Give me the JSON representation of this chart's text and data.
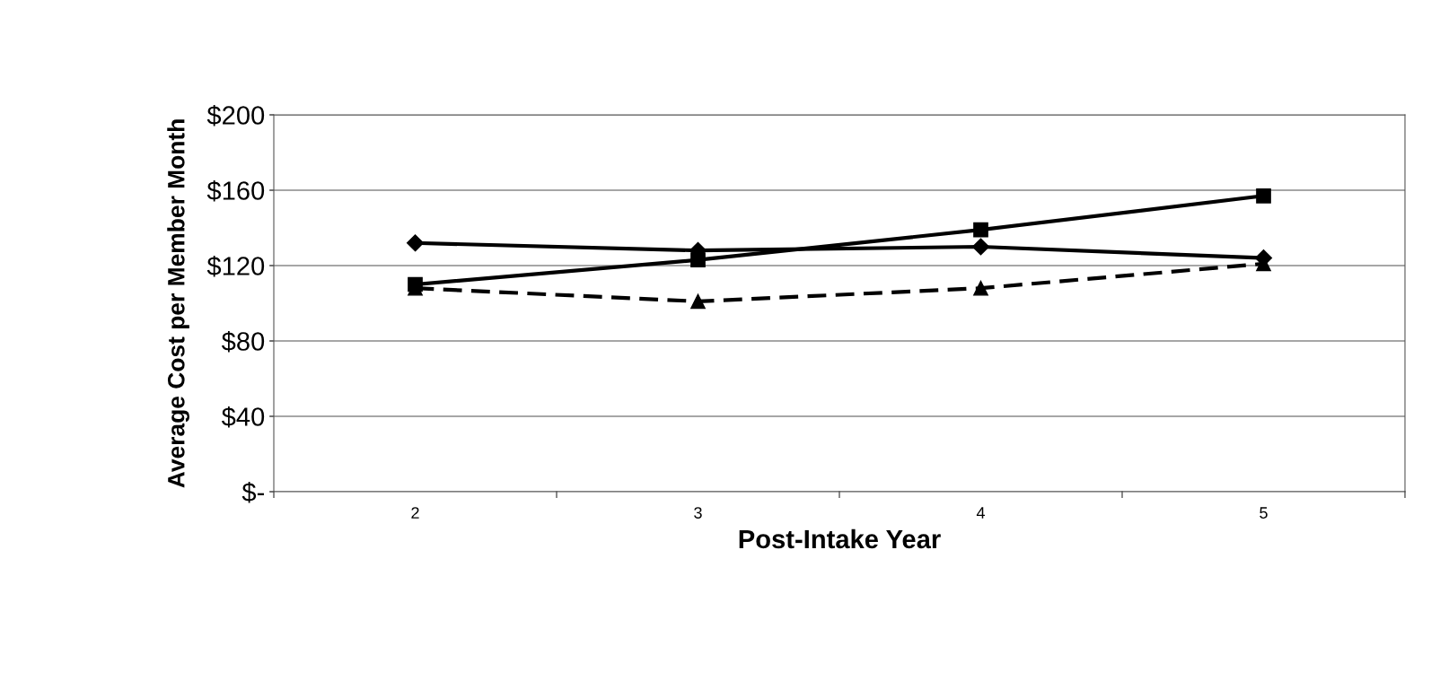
{
  "chart_data": {
    "type": "line",
    "xlabel": "Post-Intake Year",
    "ylabel": "Average Cost per Member Month",
    "categories": [
      "2",
      "3",
      "4",
      "5"
    ],
    "series": [
      {
        "color": "#000000",
        "marker": "diamond",
        "line_style": "solid",
        "values": [
          132,
          128,
          130,
          124
        ]
      },
      {
        "color": "#000000",
        "marker": "square",
        "line_style": "solid",
        "values": [
          110,
          123,
          139,
          157
        ]
      },
      {
        "color": "#000000",
        "marker": "triangle",
        "line_style": "dashed",
        "values": [
          108,
          101,
          108,
          121
        ]
      }
    ],
    "ylim": [
      0,
      200
    ],
    "yticks": [
      {
        "value": 0,
        "label": "$-"
      },
      {
        "value": 40,
        "label": "$40"
      },
      {
        "value": 80,
        "label": "$80"
      },
      {
        "value": 120,
        "label": "$120"
      },
      {
        "value": 160,
        "label": "$160"
      },
      {
        "value": 200,
        "label": "$200"
      }
    ],
    "grid": "y",
    "legend": false
  }
}
